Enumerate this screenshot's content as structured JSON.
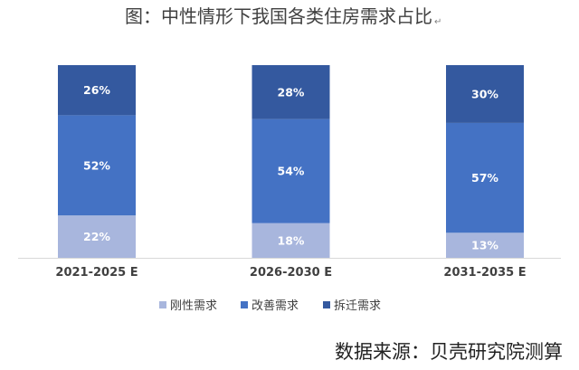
{
  "title": "图：中性情形下我国各类住房需求占比",
  "title_mark": "↵",
  "chart_data": {
    "type": "bar",
    "stacked": true,
    "categories": [
      "2021-2025 E",
      "2026-2030 E",
      "2031-2035 E"
    ],
    "series": [
      {
        "name": "刚性需求",
        "values": [
          22,
          18,
          13
        ],
        "color": "#a8b6dd"
      },
      {
        "name": "改善需求",
        "values": [
          52,
          54,
          57
        ],
        "color": "#4472c4"
      },
      {
        "name": "拆迁需求",
        "values": [
          26,
          28,
          30
        ],
        "color": "#34599f"
      }
    ],
    "ylim": [
      0,
      100
    ],
    "grid": false,
    "legend": "bottom"
  },
  "source": "数据来源：贝壳研究院测算"
}
